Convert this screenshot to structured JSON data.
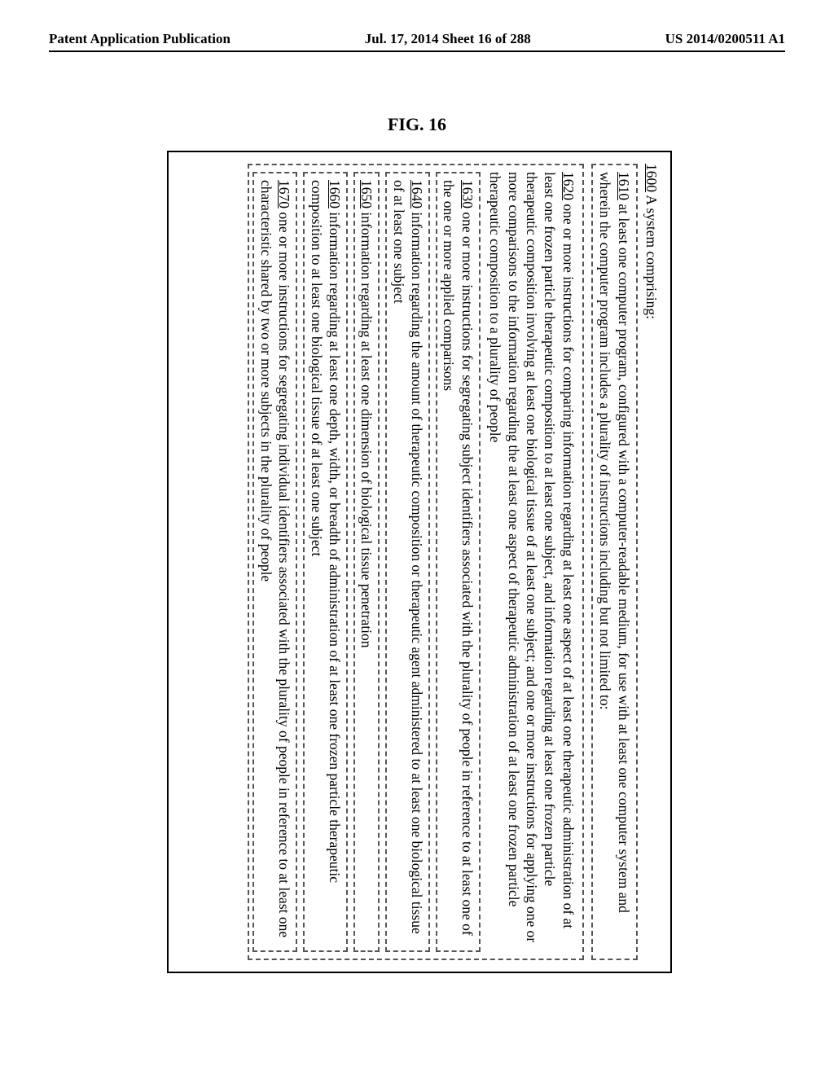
{
  "header": {
    "left": "Patent Application Publication",
    "center": "Jul. 17, 2014  Sheet 16 of 288",
    "right": "US 2014/0200511 A1"
  },
  "figure_label": "FIG. 16",
  "outer_title_ref": "1600",
  "outer_title_text": "  A system comprising:",
  "box1610_ref": "1610",
  "box1610_text": "  at least one computer program, configured with a computer-readable medium, for use with at least one computer system and wherein the computer program includes a plurality of instructions including but not limited to:",
  "box1620_ref": "1620",
  "box1620_text": "  one or more instructions for comparing information regarding at least one aspect of at least one therapeutic administration of at least one frozen particle therapeutic composition to at least one subject, and information regarding at least one frozen particle therapeutic composition involving at least one biological tissue of at least one subject; and one or more instructions for applying one or more comparisons to the information regarding the at least one aspect of therapeutic administration of at least one frozen particle therapeutic composition to a plurality of people",
  "box1630_ref": "1630",
  "box1630_text": "  one or more instructions for segregating subject identifiers associated with the plurality of people in reference to at least one of the one or more applied comparisons",
  "box1640_ref": "1640",
  "box1640_text": "  information regarding the amount of therapeutic composition or therapeutic agent administered to at least one biological tissue of at least one subject",
  "box1650_ref": "1650",
  "box1650_text": "  information regarding at least one dimension of biological tissue penetration",
  "box1660_ref": "1660",
  "box1660_text": "  information regarding at least one depth, width, or breadth of administration of at least one frozen particle therapeutic composition to at least one biological tissue of at least one subject",
  "box1670_ref": "1670",
  "box1670_text": "  one or more instructions for segregating individual identifiers associated with the plurality of people in reference to at least one characteristic shared by two or more subjects in the plurality of people"
}
